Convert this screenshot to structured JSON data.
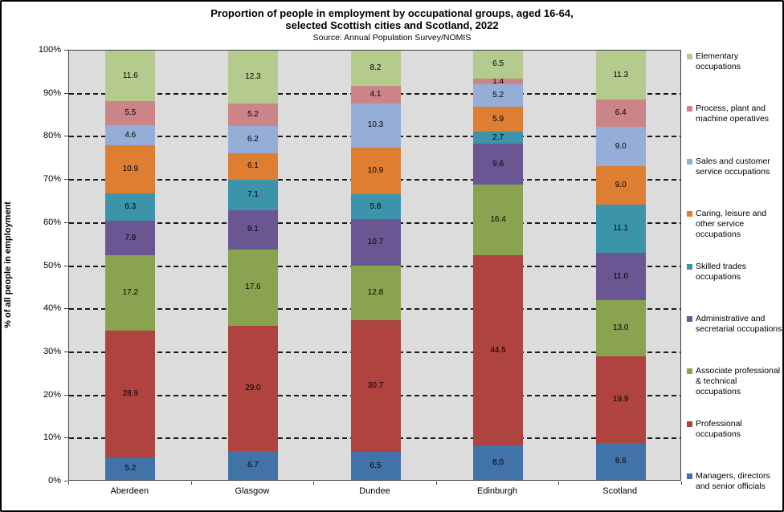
{
  "title": {
    "line1": "Proportion of people in employment by occupational groups, aged 16-64,",
    "line2": "selected Scottish cities and Scotland, 2022",
    "source": "Source: Annual Population Survey/NOMIS"
  },
  "y_axis": {
    "label": "% of all people in employment",
    "tick_labels": [
      "0%",
      "10%",
      "20%",
      "30%",
      "40%",
      "50%",
      "60%",
      "70%",
      "80%",
      "90%",
      "100%"
    ]
  },
  "chart_data": {
    "type": "bar",
    "stacked": true,
    "normalized_to_100": true,
    "grid": "dashed horizontal every 10%",
    "legend_position": "right",
    "ylim": [
      0,
      100
    ],
    "ylabel": "% of all people in employment",
    "title": "Proportion of people in employment by occupational groups, aged 16-64, selected Scottish cities and Scotland, 2022",
    "subtitle": "Source: Annual Population Survey/NOMIS",
    "categories": [
      "Aberdeen",
      "Glasgow",
      "Dundee",
      "Edinburgh",
      "Scotland"
    ],
    "series_bottom_to_top": [
      {
        "name": "Managers, directors and senior officials",
        "color": "#4273a8",
        "values": [
          5.2,
          6.7,
          6.5,
          8.0,
          8.6
        ]
      },
      {
        "name": "Professional occupations",
        "color": "#ae4340",
        "values": [
          28.9,
          29.0,
          30.7,
          44.5,
          19.9
        ]
      },
      {
        "name": "Associate professional & technical occupations",
        "color": "#89a351",
        "values": [
          17.2,
          17.6,
          12.8,
          16.4,
          13.0
        ]
      },
      {
        "name": "Administrative and secretarial occupations",
        "color": "#6a5692",
        "values": [
          7.9,
          9.1,
          10.7,
          9.6,
          11.0
        ]
      },
      {
        "name": "Skilled trades occupations",
        "color": "#3b94a9",
        "values": [
          6.3,
          7.1,
          5.8,
          2.7,
          11.1
        ]
      },
      {
        "name": "Caring, leisure and other service occupations",
        "color": "#dd7e33",
        "values": [
          10.9,
          6.1,
          10.9,
          5.9,
          9.0
        ]
      },
      {
        "name": "Sales and customer service occupations",
        "color": "#95aed8",
        "values": [
          4.6,
          6.2,
          10.3,
          5.2,
          9.0
        ]
      },
      {
        "name": "Process, plant and machine operatives",
        "color": "#cb8588",
        "values": [
          5.5,
          5.2,
          4.1,
          1.4,
          6.4
        ]
      },
      {
        "name": "Elementary occupations",
        "color": "#b4cb8d",
        "values": [
          11.6,
          12.3,
          8.2,
          6.5,
          11.3
        ]
      }
    ]
  },
  "legend": {
    "items_top_to_bottom": [
      "Elementary occupations",
      "Process, plant and machine operatives",
      "Sales and customer service occupations",
      "Caring, leisure and other service occupations",
      "Skilled trades occupations",
      "Administrative and secretarial occupations",
      "Associate professional & technical occupations",
      "Professional occupations",
      "Managers, directors and senior officials"
    ]
  }
}
